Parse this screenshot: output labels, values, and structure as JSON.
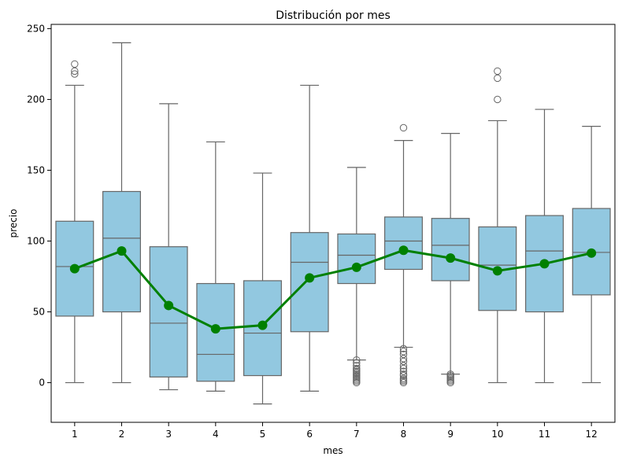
{
  "chart_data": {
    "type": "box",
    "title": "Distribución por mes",
    "xlabel": "mes",
    "ylabel": "precio",
    "ylim": [
      -28,
      253
    ],
    "yticks": [
      0,
      50,
      100,
      150,
      200,
      250
    ],
    "categories": [
      "1",
      "2",
      "3",
      "4",
      "5",
      "6",
      "7",
      "8",
      "9",
      "10",
      "11",
      "12"
    ],
    "box_color": "#92c8e0",
    "box_edge_color": "#666666",
    "line_color": "#008000",
    "grid": false,
    "legend": "none",
    "boxes": [
      {
        "whisker_low": 0,
        "q1": 47,
        "median": 82,
        "q3": 114,
        "whisker_high": 210,
        "outliers": [
          225,
          220,
          218
        ]
      },
      {
        "whisker_low": 0,
        "q1": 50,
        "median": 102,
        "q3": 135,
        "whisker_high": 240,
        "outliers": []
      },
      {
        "whisker_low": -5,
        "q1": 4,
        "median": 42,
        "q3": 96,
        "whisker_high": 197,
        "outliers": []
      },
      {
        "whisker_low": -6,
        "q1": 1,
        "median": 20,
        "q3": 70,
        "whisker_high": 170,
        "outliers": []
      },
      {
        "whisker_low": -15,
        "q1": 5,
        "median": 35,
        "q3": 72,
        "whisker_high": 148,
        "outliers": []
      },
      {
        "whisker_low": -6,
        "q1": 36,
        "median": 85,
        "q3": 106,
        "whisker_high": 210,
        "outliers": []
      },
      {
        "whisker_low": 16,
        "q1": 70,
        "median": 90,
        "q3": 105,
        "whisker_high": 152,
        "outliers": [
          16,
          14,
          12,
          10,
          9,
          8,
          7,
          6,
          5,
          4,
          3,
          2,
          1,
          0
        ]
      },
      {
        "whisker_low": 25,
        "q1": 80,
        "median": 100,
        "q3": 117,
        "whisker_high": 171,
        "outliers": [
          180,
          24,
          22,
          20,
          17,
          15,
          12,
          10,
          8,
          6,
          5,
          3,
          2,
          1,
          0
        ]
      },
      {
        "whisker_low": 6,
        "q1": 72,
        "median": 97,
        "q3": 116,
        "whisker_high": 176,
        "outliers": [
          6,
          5,
          4,
          3,
          2,
          1,
          0
        ]
      },
      {
        "whisker_low": 0,
        "q1": 51,
        "median": 83,
        "q3": 110,
        "whisker_high": 185,
        "outliers": [
          220,
          215,
          200
        ]
      },
      {
        "whisker_low": 0,
        "q1": 50,
        "median": 93,
        "q3": 118,
        "whisker_high": 193,
        "outliers": []
      },
      {
        "whisker_low": 0,
        "q1": 62,
        "median": 92,
        "q3": 123,
        "whisker_high": 181,
        "outliers": []
      }
    ],
    "mean_line": [
      80.5,
      93,
      54.5,
      38,
      40.5,
      74,
      81.5,
      93.5,
      88,
      79,
      84,
      91.5
    ]
  }
}
